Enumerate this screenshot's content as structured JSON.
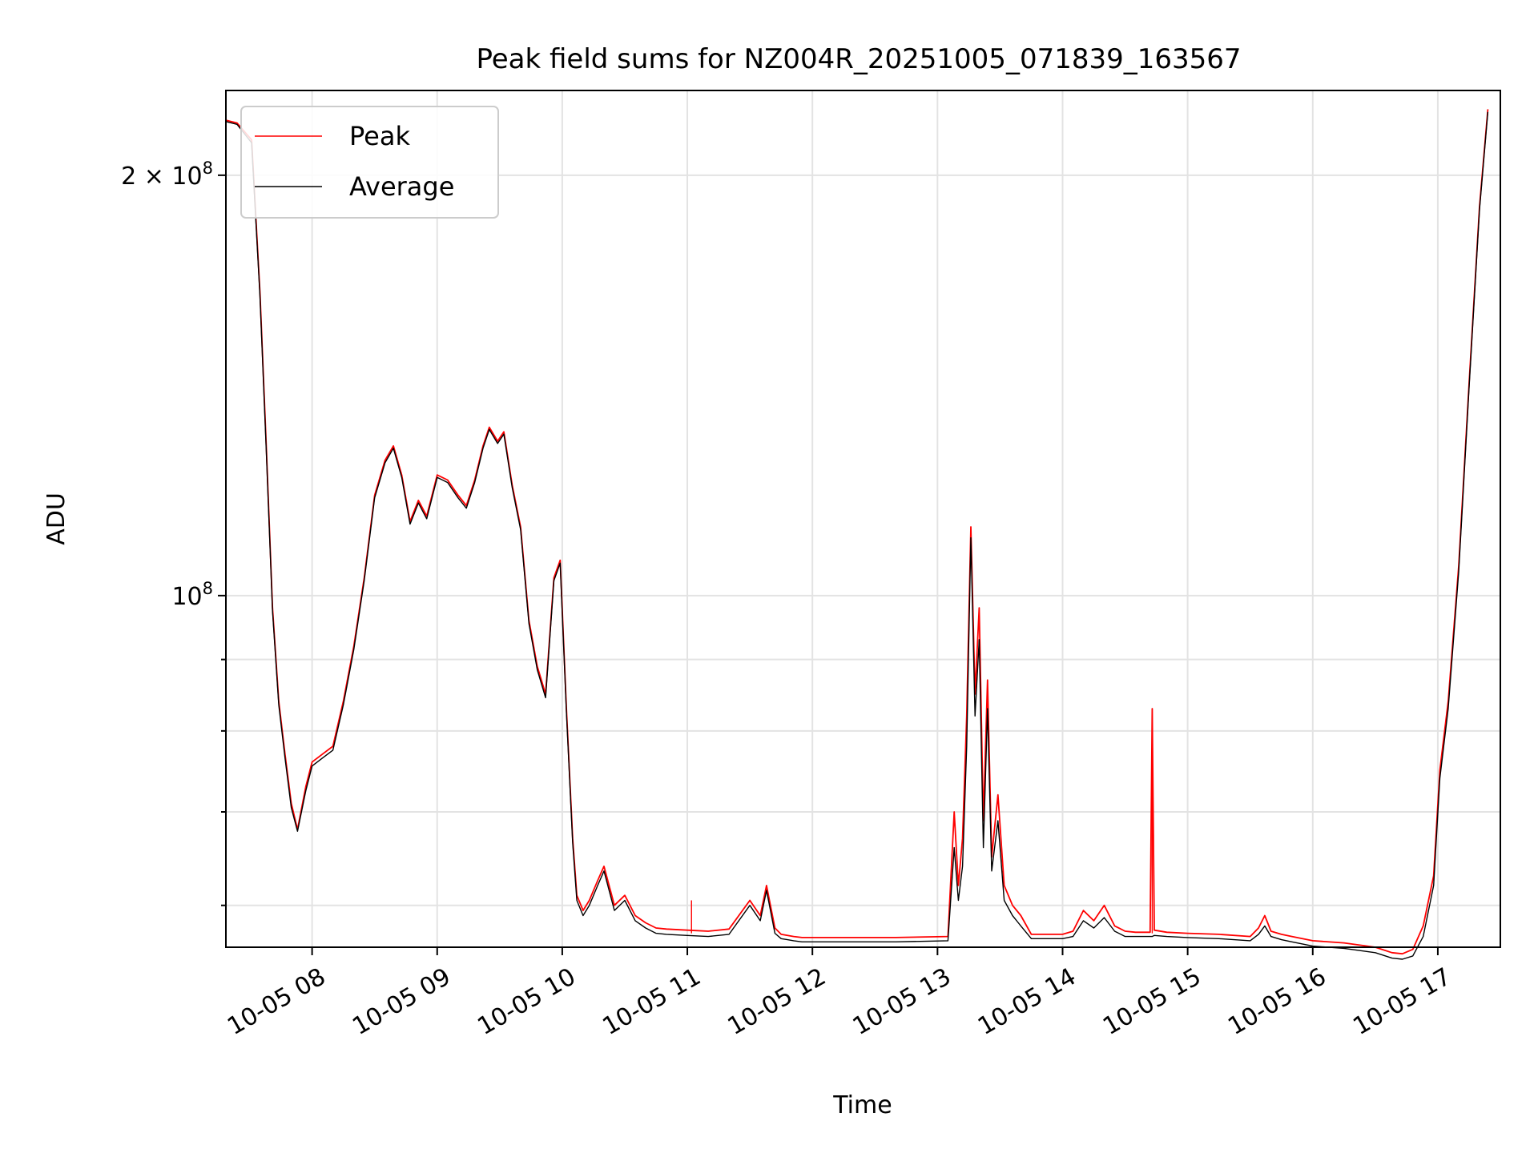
{
  "chart_data": {
    "type": "line",
    "title": "Peak field sums for NZ004R_20251005_071839_163567",
    "xlabel": "Time",
    "ylabel": "ADU",
    "yscale": "log",
    "xlim": [
      "10-05 07:18:39",
      "10-05 17:30:00"
    ],
    "ylim": [
      56000000,
      230000000
    ],
    "grid": true,
    "legend_position": "upper left",
    "x_ticks": [
      "10-05 08",
      "10-05 09",
      "10-05 10",
      "10-05 11",
      "10-05 12",
      "10-05 13",
      "10-05 14",
      "10-05 15",
      "10-05 16",
      "10-05 17"
    ],
    "y_ticks": [
      {
        "value": 200000000,
        "mantissa": "2",
        "times": "×",
        "base": "10",
        "exp": "8"
      },
      {
        "value": 100000000,
        "mantissa": "",
        "times": "",
        "base": "10",
        "exp": "8"
      }
    ],
    "y_minor_ticks": [
      60000000,
      70000000,
      80000000,
      90000000
    ],
    "colors": {
      "Peak": "#ff0000",
      "Average": "#000000"
    },
    "series": [
      {
        "name": "Peak",
        "x": [
          "10-05 07:18:39",
          "10-05 07:24",
          "10-05 07:31",
          "10-05 07:35",
          "10-05 07:38",
          "10-05 07:41",
          "10-05 07:44",
          "10-05 07:47",
          "10-05 07:50",
          "10-05 07:53",
          "10-05 07:57",
          "10-05 08:00",
          "10-05 08:05",
          "10-05 08:10",
          "10-05 08:15",
          "10-05 08:20",
          "10-05 08:25",
          "10-05 08:30",
          "10-05 08:35",
          "10-05 08:39",
          "10-05 08:43",
          "10-05 08:47",
          "10-05 08:51",
          "10-05 08:55",
          "10-05 09:00",
          "10-05 09:05",
          "10-05 09:10",
          "10-05 09:14",
          "10-05 09:18",
          "10-05 09:22",
          "10-05 09:25",
          "10-05 09:29",
          "10-05 09:32",
          "10-05 09:36",
          "10-05 09:40",
          "10-05 09:44",
          "10-05 09:48",
          "10-05 09:52",
          "10-05 09:56",
          "10-05 09:59",
          "10-05 10:02",
          "10-05 10:05",
          "10-05 10:07",
          "10-05 10:10",
          "10-05 10:13",
          "10-05 10:17",
          "10-05 10:20",
          "10-05 10:25",
          "10-05 10:30",
          "10-05 10:35",
          "10-05 10:40",
          "10-05 10:45",
          "10-05 10:50",
          "10-05 11:00",
          "10-05 11:10",
          "10-05 11:20",
          "10-05 11:30",
          "10-05 11:35",
          "10-05 11:38",
          "10-05 11:42",
          "10-05 11:45",
          "10-05 11:48",
          "10-05 11:51",
          "10-05 11:55",
          "10-05 12:00",
          "10-05 12:20",
          "10-05 12:40",
          "10-05 13:05",
          "10-05 13:08",
          "10-05 13:10",
          "10-05 13:12",
          "10-05 13:14",
          "10-05 13:16",
          "10-05 13:18",
          "10-05 13:20",
          "10-05 13:22",
          "10-05 13:24",
          "10-05 13:26",
          "10-05 13:29",
          "10-05 13:32",
          "10-05 13:36",
          "10-05 13:40",
          "10-05 13:45",
          "10-05 13:50",
          "10-05 13:55",
          "10-05 14:00",
          "10-05 14:05",
          "10-05 14:10",
          "10-05 14:15",
          "10-05 14:20",
          "10-05 14:25",
          "10-05 14:30",
          "10-05 14:35",
          "10-05 14:42",
          "10-05 14:43",
          "10-05 14:44",
          "10-05 14:50",
          "10-05 15:00",
          "10-05 15:15",
          "10-05 15:30",
          "10-05 15:34",
          "10-05 15:37",
          "10-05 15:40",
          "10-05 15:45",
          "10-05 15:50",
          "10-05 16:00",
          "10-05 16:15",
          "10-05 16:30",
          "10-05 16:38",
          "10-05 16:43",
          "10-05 16:48",
          "10-05 16:53",
          "10-05 16:58",
          "10-05 17:01",
          "10-05 17:05",
          "10-05 17:10",
          "10-05 17:15",
          "10-05 17:20",
          "10-05 17:24"
        ],
        "y": [
          219000000,
          218000000,
          212000000,
          165000000,
          128000000,
          98000000,
          84000000,
          77000000,
          71000000,
          68000000,
          73000000,
          76000000,
          77000000,
          78000000,
          84000000,
          92000000,
          103000000,
          118000000,
          125000000,
          128000000,
          122000000,
          113000000,
          117000000,
          114000000,
          122000000,
          121000000,
          118000000,
          116000000,
          121000000,
          128000000,
          132000000,
          129000000,
          131000000,
          120000000,
          112000000,
          96000000,
          89000000,
          85000000,
          103000000,
          106000000,
          83000000,
          67000000,
          61000000,
          59500000,
          60500000,
          62500000,
          64000000,
          60000000,
          61000000,
          59000000,
          58300000,
          57800000,
          57700000,
          57600000,
          57500000,
          57700000,
          60500000,
          59000000,
          62000000,
          57800000,
          57200000,
          57100000,
          57000000,
          56900000,
          56900000,
          56900000,
          56900000,
          57000000,
          70000000,
          62000000,
          67000000,
          82000000,
          112000000,
          85000000,
          98000000,
          69000000,
          87000000,
          65000000,
          72000000,
          62000000,
          60000000,
          59000000,
          57200000,
          57200000,
          57200000,
          57200000,
          57500000,
          59500000,
          58500000,
          60000000,
          58000000,
          57500000,
          57400000,
          57400000,
          83000000,
          57600000,
          57400000,
          57300000,
          57200000,
          57000000,
          57800000,
          59000000,
          57500000,
          57200000,
          57000000,
          56600000,
          56400000,
          56000000,
          55500000,
          55400000,
          55800000,
          58000000,
          63000000,
          75000000,
          84000000,
          105000000,
          142000000,
          190000000,
          223000000
        ],
        "spikes": [
          {
            "x": "10-05 11:02",
            "y": 60500000
          },
          {
            "x": "10-05 14:43",
            "y": 83000000
          }
        ]
      },
      {
        "name": "Average",
        "x": [
          "10-05 07:18:39",
          "10-05 07:24",
          "10-05 07:31",
          "10-05 07:35",
          "10-05 07:38",
          "10-05 07:41",
          "10-05 07:44",
          "10-05 07:47",
          "10-05 07:50",
          "10-05 07:53",
          "10-05 07:57",
          "10-05 08:00",
          "10-05 08:05",
          "10-05 08:10",
          "10-05 08:15",
          "10-05 08:20",
          "10-05 08:25",
          "10-05 08:30",
          "10-05 08:35",
          "10-05 08:39",
          "10-05 08:43",
          "10-05 08:47",
          "10-05 08:51",
          "10-05 08:55",
          "10-05 09:00",
          "10-05 09:05",
          "10-05 09:10",
          "10-05 09:14",
          "10-05 09:18",
          "10-05 09:22",
          "10-05 09:25",
          "10-05 09:29",
          "10-05 09:32",
          "10-05 09:36",
          "10-05 09:40",
          "10-05 09:44",
          "10-05 09:48",
          "10-05 09:52",
          "10-05 09:56",
          "10-05 09:59",
          "10-05 10:02",
          "10-05 10:05",
          "10-05 10:07",
          "10-05 10:10",
          "10-05 10:13",
          "10-05 10:17",
          "10-05 10:20",
          "10-05 10:25",
          "10-05 10:30",
          "10-05 10:35",
          "10-05 10:40",
          "10-05 10:45",
          "10-05 10:50",
          "10-05 11:00",
          "10-05 11:10",
          "10-05 11:20",
          "10-05 11:30",
          "10-05 11:35",
          "10-05 11:38",
          "10-05 11:42",
          "10-05 11:45",
          "10-05 11:48",
          "10-05 11:51",
          "10-05 11:55",
          "10-05 12:00",
          "10-05 12:20",
          "10-05 12:40",
          "10-05 13:05",
          "10-05 13:08",
          "10-05 13:10",
          "10-05 13:12",
          "10-05 13:14",
          "10-05 13:16",
          "10-05 13:18",
          "10-05 13:20",
          "10-05 13:22",
          "10-05 13:24",
          "10-05 13:26",
          "10-05 13:29",
          "10-05 13:32",
          "10-05 13:36",
          "10-05 13:40",
          "10-05 13:45",
          "10-05 13:50",
          "10-05 13:55",
          "10-05 14:00",
          "10-05 14:05",
          "10-05 14:10",
          "10-05 14:15",
          "10-05 14:20",
          "10-05 14:25",
          "10-05 14:30",
          "10-05 14:35",
          "10-05 14:42",
          "10-05 14:43",
          "10-05 14:44",
          "10-05 14:50",
          "10-05 15:00",
          "10-05 15:15",
          "10-05 15:30",
          "10-05 15:34",
          "10-05 15:37",
          "10-05 15:40",
          "10-05 15:45",
          "10-05 15:50",
          "10-05 16:00",
          "10-05 16:15",
          "10-05 16:30",
          "10-05 16:38",
          "10-05 16:43",
          "10-05 16:48",
          "10-05 16:53",
          "10-05 16:58",
          "10-05 17:01",
          "10-05 17:05",
          "10-05 17:10",
          "10-05 17:15",
          "10-05 17:20",
          "10-05 17:24"
        ],
        "y": [
          218500000,
          217500000,
          211000000,
          164000000,
          127000000,
          97500000,
          83500000,
          76500000,
          70500000,
          67800000,
          72500000,
          75500000,
          76500000,
          77500000,
          83500000,
          91500000,
          102500000,
          117500000,
          124500000,
          127500000,
          121500000,
          112500000,
          116500000,
          113500000,
          121500000,
          120500000,
          117500000,
          115500000,
          120500000,
          127500000,
          131500000,
          128500000,
          130500000,
          119500000,
          111500000,
          95500000,
          88500000,
          84500000,
          102500000,
          105500000,
          82500000,
          66500000,
          60500000,
          59000000,
          60000000,
          62000000,
          63500000,
          59500000,
          60500000,
          58500000,
          57800000,
          57300000,
          57200000,
          57100000,
          57000000,
          57200000,
          60000000,
          58500000,
          61500000,
          57300000,
          56800000,
          56700000,
          56600000,
          56500000,
          56500000,
          56500000,
          56500000,
          56600000,
          66000000,
          60500000,
          64000000,
          78000000,
          110000000,
          82000000,
          93000000,
          66000000,
          83000000,
          63500000,
          69000000,
          60500000,
          59000000,
          58000000,
          56800000,
          56800000,
          56800000,
          56800000,
          57000000,
          58500000,
          57800000,
          58800000,
          57500000,
          57000000,
          57000000,
          57000000,
          57000000,
          57100000,
          57000000,
          56900000,
          56800000,
          56600000,
          57200000,
          58000000,
          57000000,
          56700000,
          56500000,
          56100000,
          55900000,
          55500000,
          55000000,
          54900000,
          55200000,
          57000000,
          62000000,
          74000000,
          83000000,
          104000000,
          141000000,
          189000000,
          222000000
        ],
        "spikes": []
      }
    ]
  }
}
